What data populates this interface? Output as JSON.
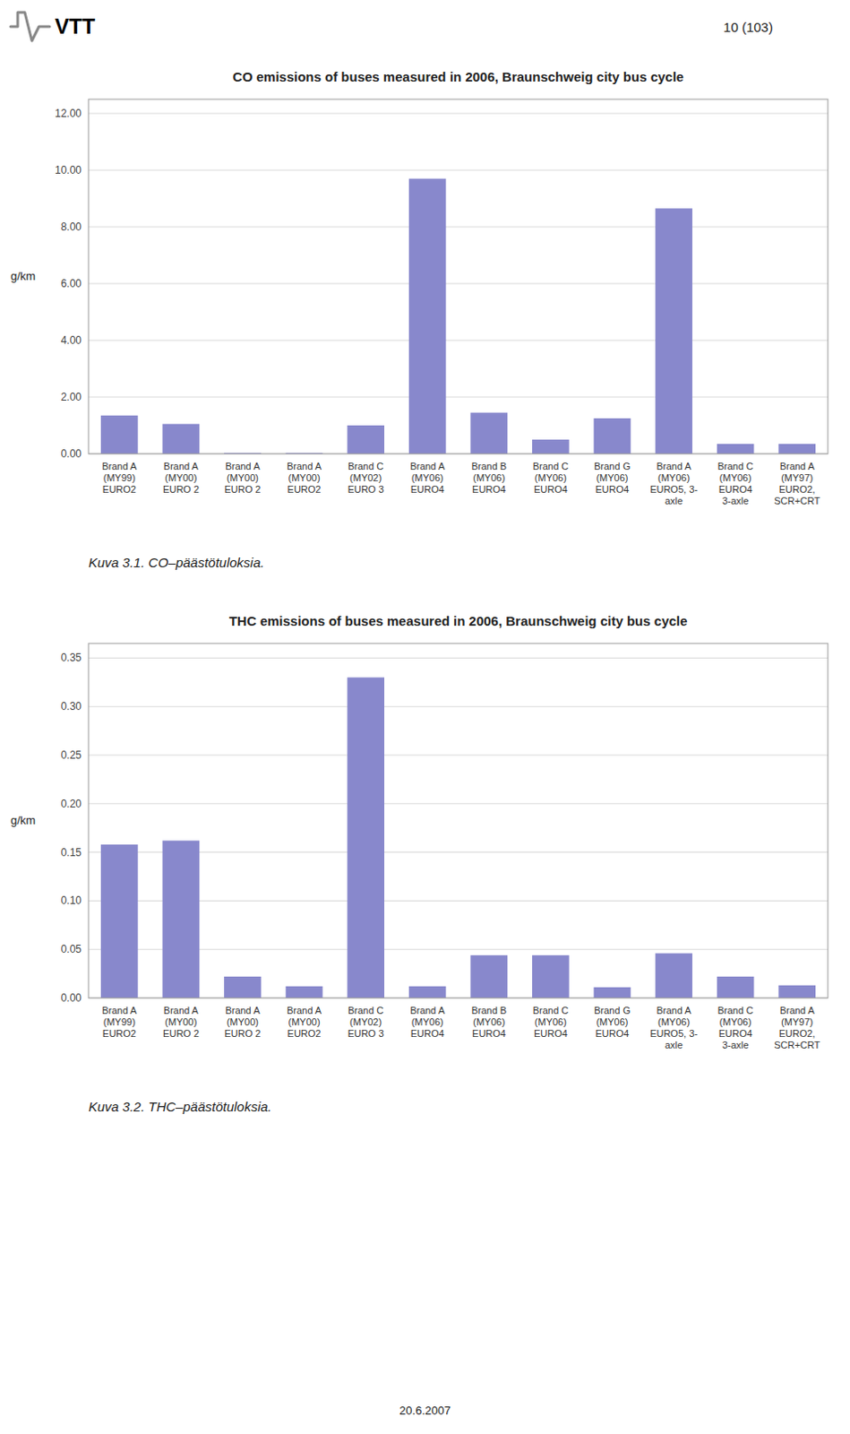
{
  "logo": "VTT",
  "header": "10 (103)",
  "footer": "20.6.2007",
  "chart_data": [
    {
      "type": "bar",
      "title": "CO emissions of buses measured in 2006, Braunschweig city bus cycle",
      "caption": "Kuva 3.1.  CO–päästötuloksia.",
      "ylabel": "g/km",
      "categories": [
        "Brand A\n(MY99)\nEURO2",
        "Brand A\n(MY00)\nEURO 2",
        "Brand A\n(MY00)\nEURO 2",
        "Brand A\n(MY00)\nEURO2",
        "Brand C\n(MY02)\nEURO 3",
        "Brand A\n(MY06)\nEURO4",
        "Brand B\n(MY06)\nEURO4",
        "Brand C\n(MY06)\nEURO4",
        "Brand G\n(MY06)\nEURO4",
        "Brand A\n(MY06)\nEURO5, 3-\naxle",
        "Brand C\n(MY06)\nEURO4\n3-axle",
        "Brand A\n(MY97)\nEURO2,\nSCR+CRT"
      ],
      "values": [
        1.35,
        1.05,
        0.03,
        0.03,
        1.0,
        9.7,
        1.45,
        0.5,
        1.25,
        8.65,
        0.35,
        0.35
      ],
      "color": "#8888cc",
      "ylim": [
        0,
        12.5
      ],
      "yticks": [
        {
          "value": 0.0,
          "label": "0.00"
        },
        {
          "value": 2.0,
          "label": "2.00"
        },
        {
          "value": 4.0,
          "label": "4.00"
        },
        {
          "value": 6.0,
          "label": "6.00"
        },
        {
          "value": 8.0,
          "label": "8.00"
        },
        {
          "value": 10.0,
          "label": "10.00"
        },
        {
          "value": 12.0,
          "label": "12.00"
        }
      ],
      "grid": true
    },
    {
      "type": "bar",
      "title": "THC emissions of buses measured in 2006, Braunschweig city bus cycle",
      "caption": "Kuva 3.2.  THC–päästötuloksia.",
      "ylabel": "g/km",
      "categories": [
        "Brand A\n(MY99)\nEURO2",
        "Brand A\n(MY00)\nEURO 2",
        "Brand A\n(MY00)\nEURO 2",
        "Brand A\n(MY00)\nEURO2",
        "Brand C\n(MY02)\nEURO 3",
        "Brand A\n(MY06)\nEURO4",
        "Brand B\n(MY06)\nEURO4",
        "Brand C\n(MY06)\nEURO4",
        "Brand G\n(MY06)\nEURO4",
        "Brand A\n(MY06)\nEURO5, 3-\naxle",
        "Brand C\n(MY06)\nEURO4\n3-axle",
        "Brand A\n(MY97)\nEURO2,\nSCR+CRT"
      ],
      "values": [
        0.158,
        0.162,
        0.022,
        0.012,
        0.33,
        0.012,
        0.044,
        0.044,
        0.011,
        0.046,
        0.022,
        0.013
      ],
      "color": "#8888cc",
      "ylim": [
        0,
        0.365
      ],
      "yticks": [
        {
          "value": 0.0,
          "label": "0.00"
        },
        0.05,
        {
          "value": 0.1,
          "label": "0.10"
        },
        0.15,
        {
          "value": 0.2,
          "label": "0.20"
        },
        0.25,
        {
          "value": 0.3,
          "label": "0.30"
        },
        0.35
      ],
      "grid": true
    }
  ]
}
